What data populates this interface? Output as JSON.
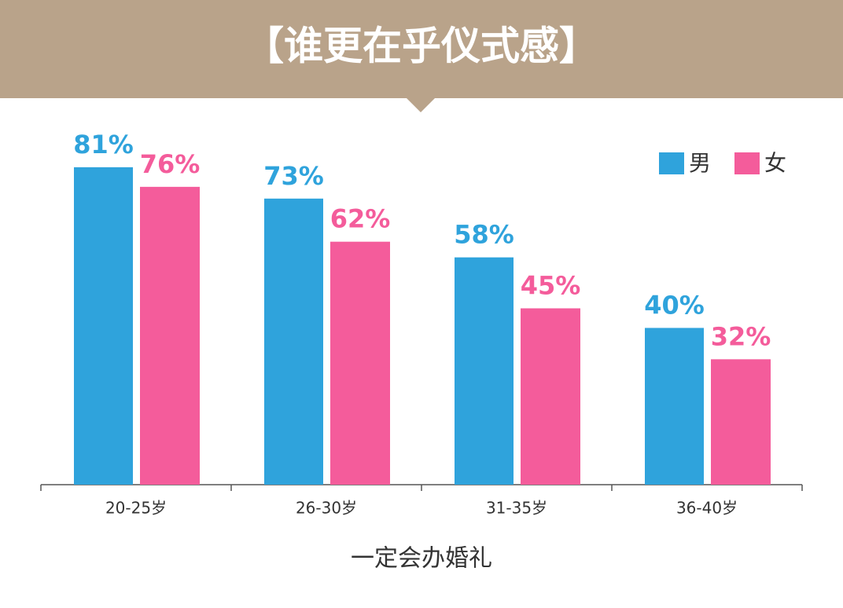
{
  "chart_data": {
    "type": "bar",
    "title": "【谁更在乎仪式感】",
    "x_label": "一定会办婚礼",
    "categories": [
      "20-25岁",
      "26-30岁",
      "31-35岁",
      "36-40岁"
    ],
    "series": [
      {
        "name": "男",
        "color": "#2fa3dc",
        "values": [
          81,
          73,
          58,
          40
        ],
        "value_labels": [
          "81%",
          "73%",
          "58%",
          "40%"
        ]
      },
      {
        "name": "女",
        "color": "#f45c9b",
        "values": [
          76,
          62,
          45,
          32
        ],
        "value_labels": [
          "76%",
          "62%",
          "45%",
          "32%"
        ]
      }
    ],
    "ylim": [
      0,
      90
    ],
    "legend": "top-right"
  }
}
